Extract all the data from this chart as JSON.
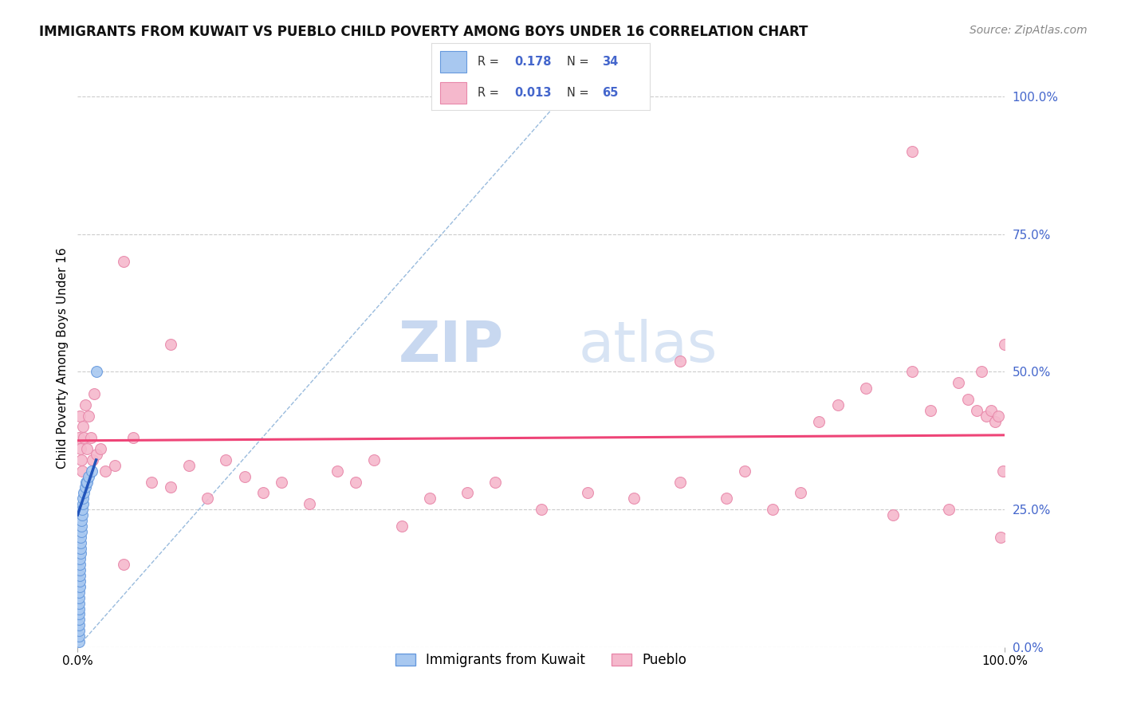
{
  "title": "IMMIGRANTS FROM KUWAIT VS PUEBLO CHILD POVERTY AMONG BOYS UNDER 16 CORRELATION CHART",
  "source": "Source: ZipAtlas.com",
  "ylabel": "Child Poverty Among Boys Under 16",
  "bottom_legend": [
    "Immigrants from Kuwait",
    "Pueblo"
  ],
  "blue_scatter_x": [
    0.001,
    0.001,
    0.001,
    0.001,
    0.001,
    0.001,
    0.001,
    0.001,
    0.001,
    0.001,
    0.002,
    0.002,
    0.002,
    0.002,
    0.002,
    0.002,
    0.003,
    0.003,
    0.003,
    0.003,
    0.004,
    0.004,
    0.004,
    0.005,
    0.005,
    0.006,
    0.006,
    0.007,
    0.008,
    0.009,
    0.01,
    0.012,
    0.015,
    0.02
  ],
  "blue_scatter_y": [
    0.01,
    0.02,
    0.03,
    0.04,
    0.05,
    0.06,
    0.07,
    0.08,
    0.09,
    0.1,
    0.11,
    0.12,
    0.13,
    0.14,
    0.15,
    0.16,
    0.17,
    0.18,
    0.19,
    0.2,
    0.21,
    0.22,
    0.23,
    0.24,
    0.25,
    0.26,
    0.27,
    0.28,
    0.29,
    0.3,
    0.3,
    0.31,
    0.32,
    0.5
  ],
  "pink_scatter_x": [
    0.001,
    0.002,
    0.003,
    0.004,
    0.005,
    0.006,
    0.007,
    0.008,
    0.01,
    0.012,
    0.014,
    0.016,
    0.018,
    0.02,
    0.025,
    0.03,
    0.04,
    0.05,
    0.06,
    0.08,
    0.1,
    0.12,
    0.14,
    0.16,
    0.18,
    0.2,
    0.22,
    0.25,
    0.28,
    0.3,
    0.32,
    0.35,
    0.38,
    0.42,
    0.45,
    0.5,
    0.55,
    0.6,
    0.65,
    0.7,
    0.72,
    0.75,
    0.78,
    0.8,
    0.82,
    0.85,
    0.88,
    0.9,
    0.92,
    0.94,
    0.95,
    0.96,
    0.97,
    0.975,
    0.98,
    0.985,
    0.99,
    0.993,
    0.996,
    0.998,
    1.0,
    0.1,
    0.9,
    0.65,
    0.05
  ],
  "pink_scatter_y": [
    0.38,
    0.42,
    0.36,
    0.34,
    0.32,
    0.4,
    0.38,
    0.44,
    0.36,
    0.42,
    0.38,
    0.34,
    0.46,
    0.35,
    0.36,
    0.32,
    0.33,
    0.15,
    0.38,
    0.3,
    0.29,
    0.33,
    0.27,
    0.34,
    0.31,
    0.28,
    0.3,
    0.26,
    0.32,
    0.3,
    0.34,
    0.22,
    0.27,
    0.28,
    0.3,
    0.25,
    0.28,
    0.27,
    0.3,
    0.27,
    0.32,
    0.25,
    0.28,
    0.41,
    0.44,
    0.47,
    0.24,
    0.5,
    0.43,
    0.25,
    0.48,
    0.45,
    0.43,
    0.5,
    0.42,
    0.43,
    0.41,
    0.42,
    0.2,
    0.32,
    0.55,
    0.55,
    0.9,
    0.52,
    0.7
  ],
  "blue_line_x": [
    0.0,
    0.02
  ],
  "blue_line_y": [
    0.24,
    0.34
  ],
  "pink_line_x": [
    0.0,
    1.0
  ],
  "pink_line_y": [
    0.375,
    0.385
  ],
  "diag_line_x": [
    0.0,
    0.55
  ],
  "diag_line_y": [
    0.0,
    1.05
  ],
  "r_blue": "0.178",
  "n_blue": "34",
  "r_pink": "0.013",
  "n_pink": "65",
  "watermark_zip": "ZIP",
  "watermark_atlas": "atlas",
  "scatter_size": 100,
  "blue_color": "#a8c8f0",
  "blue_edge_color": "#6699dd",
  "pink_color": "#f5b8cc",
  "pink_edge_color": "#e888aa",
  "blue_line_color": "#2255bb",
  "pink_line_color": "#ee4477",
  "diag_line_color": "#99bbdd",
  "grid_color": "#cccccc",
  "background_color": "#ffffff",
  "title_fontsize": 12,
  "source_fontsize": 10,
  "right_tick_color": "#4466cc",
  "xlim": [
    0.0,
    1.0
  ],
  "ylim": [
    0.0,
    1.05
  ],
  "yticks": [
    0.0,
    0.25,
    0.5,
    0.75,
    1.0
  ],
  "ytick_labels": [
    "0.0%",
    "25.0%",
    "50.0%",
    "75.0%",
    "100.0%"
  ]
}
